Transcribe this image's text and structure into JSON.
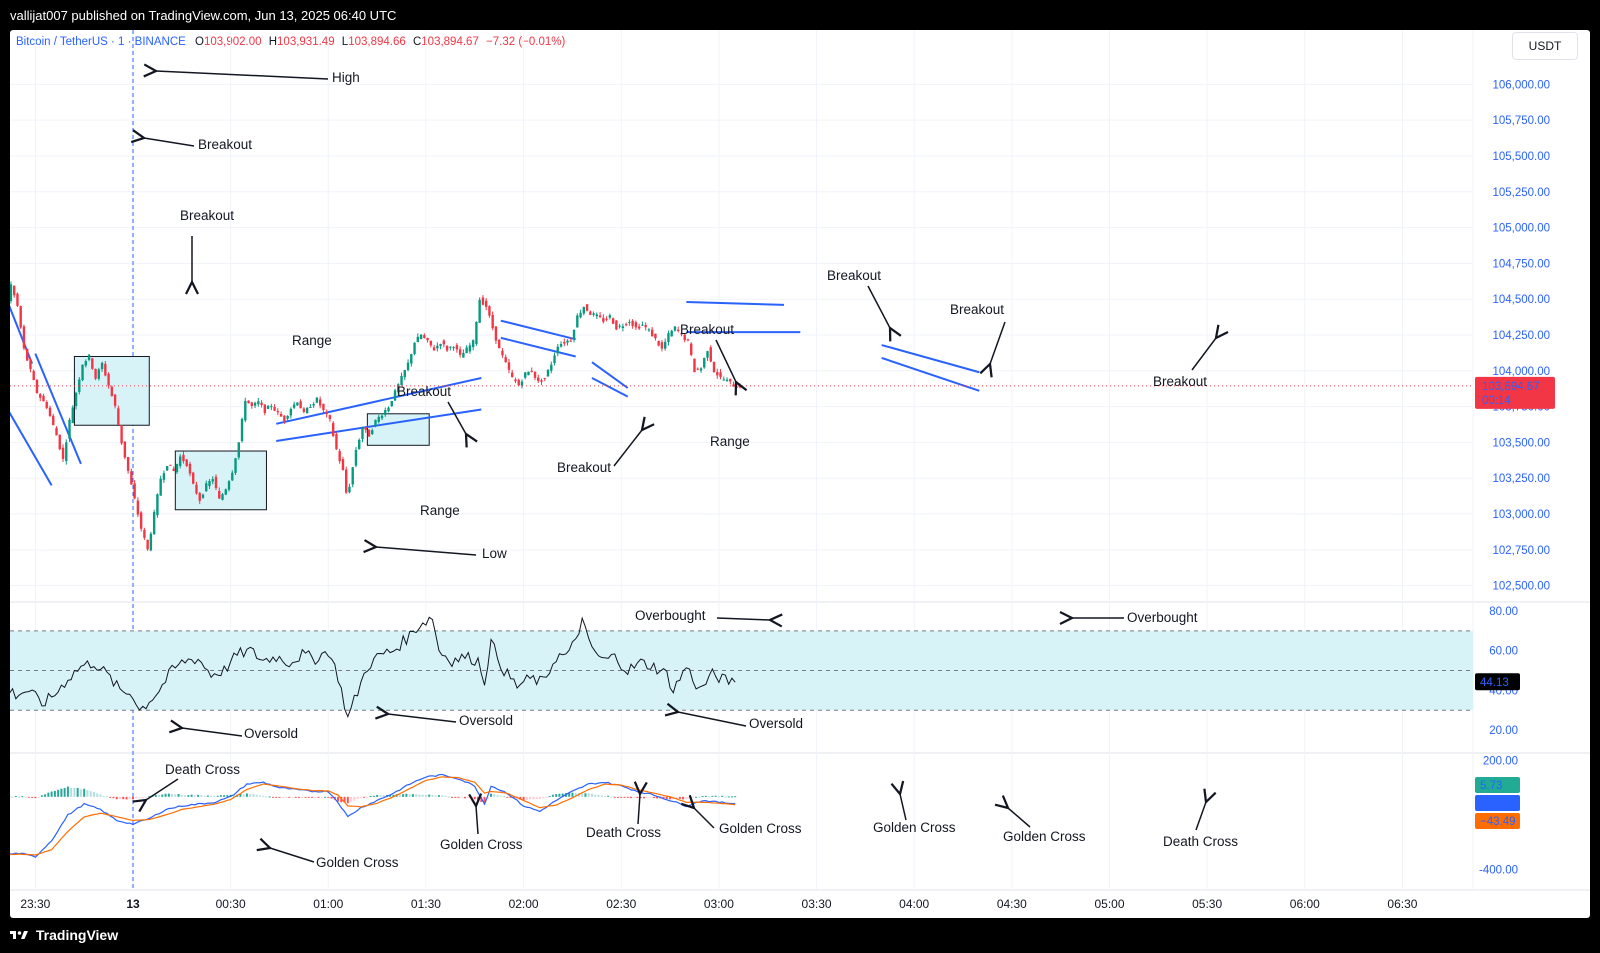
{
  "header": {
    "published": "vallijat007 published on TradingView.com, Jun 13, 2025 06:40 UTC"
  },
  "legend": {
    "symbol": "Bitcoin / TetherUS · 1 · BINANCE",
    "o_label": "O",
    "o": "103,902.00",
    "h_label": "H",
    "h": "103,931.49",
    "l_label": "L",
    "l": "103,894.66",
    "c_label": "C",
    "c": "103,894.67",
    "change": "−7.32 (−0.01%)"
  },
  "currency": "USDT",
  "footer": {
    "brand": "TradingView"
  },
  "colors": {
    "up": "#089981",
    "down": "#f23645",
    "annotation_line": "#2962ff",
    "zone_fill": "#d7f3f8",
    "macd_line": "#2962ff",
    "signal_line": "#ff6d00"
  },
  "chart_data": [
    {
      "type": "candlestick",
      "title": "Bitcoin / TetherUS · 1 · BINANCE",
      "y_ticks": [
        "106,000.00",
        "105,750.00",
        "105,500.00",
        "105,250.00",
        "105,000.00",
        "104,750.00",
        "104,500.00",
        "104,250.00",
        "104,000.00",
        "103,750.00",
        "103,500.00",
        "103,250.00",
        "103,000.00",
        "102,750.00",
        "102,500.00"
      ],
      "ylim": [
        102400,
        106100
      ],
      "x_ticks": [
        "23:30",
        "13",
        "00:30",
        "01:00",
        "01:30",
        "02:00",
        "02:30",
        "03:00",
        "03:30",
        "04:00",
        "04:30",
        "05:00",
        "05:30",
        "06:00",
        "06:30"
      ],
      "last_price": "103,894.67",
      "countdown": "00:14",
      "price_path": [
        [
          -105,
          106050
        ],
        [
          -95,
          106010
        ],
        [
          -85,
          105990
        ],
        [
          -75,
          105970
        ],
        [
          -65,
          105930
        ],
        [
          -60,
          105900
        ],
        [
          -58,
          105700
        ],
        [
          -56,
          105400
        ],
        [
          -54,
          105100
        ],
        [
          -52,
          104900
        ],
        [
          -50,
          104800
        ],
        [
          -47,
          104650
        ],
        [
          -44,
          104550
        ],
        [
          -41,
          104400
        ],
        [
          -39,
          104350
        ],
        [
          -37,
          104600
        ],
        [
          -35,
          104450
        ],
        [
          -33,
          104150
        ],
        [
          -31,
          104000
        ],
        [
          -29,
          103850
        ],
        [
          -26,
          103750
        ],
        [
          -23,
          103550
        ],
        [
          -21,
          103380
        ],
        [
          -19,
          103650
        ],
        [
          -17,
          103850
        ],
        [
          -15,
          104050
        ],
        [
          -13,
          104100
        ],
        [
          -11,
          103950
        ],
        [
          -9,
          104050
        ],
        [
          -7,
          103900
        ],
        [
          -5,
          103750
        ],
        [
          -3,
          103500
        ],
        [
          -1,
          103300
        ],
        [
          1,
          103100
        ],
        [
          3,
          102900
        ],
        [
          5,
          102750
        ],
        [
          7,
          103000
        ],
        [
          9,
          103250
        ],
        [
          11,
          103350
        ],
        [
          13,
          103300
        ],
        [
          15,
          103400
        ],
        [
          17,
          103350
        ],
        [
          19,
          103200
        ],
        [
          21,
          103100
        ],
        [
          23,
          103200
        ],
        [
          25,
          103250
        ],
        [
          27,
          103100
        ],
        [
          29,
          103180
        ],
        [
          31,
          103300
        ],
        [
          33,
          103500
        ],
        [
          35,
          103800
        ],
        [
          37,
          103750
        ],
        [
          39,
          103780
        ],
        [
          41,
          103720
        ],
        [
          43,
          103760
        ],
        [
          45,
          103700
        ],
        [
          47,
          103660
        ],
        [
          49,
          103740
        ],
        [
          51,
          103790
        ],
        [
          53,
          103700
        ],
        [
          55,
          103760
        ],
        [
          57,
          103800
        ],
        [
          59,
          103720
        ],
        [
          61,
          103650
        ],
        [
          63,
          103450
        ],
        [
          65,
          103300
        ],
        [
          66,
          103150
        ],
        [
          67,
          103200
        ],
        [
          69,
          103450
        ],
        [
          71,
          103600
        ],
        [
          73,
          103550
        ],
        [
          75,
          103650
        ],
        [
          77,
          103700
        ],
        [
          79,
          103750
        ],
        [
          81,
          103850
        ],
        [
          83,
          103950
        ],
        [
          85,
          104050
        ],
        [
          87,
          104200
        ],
        [
          89,
          104250
        ],
        [
          91,
          104200
        ],
        [
          93,
          104150
        ],
        [
          95,
          104200
        ],
        [
          97,
          104150
        ],
        [
          99,
          104180
        ],
        [
          101,
          104100
        ],
        [
          103,
          104150
        ],
        [
          105,
          104200
        ],
        [
          107,
          104500
        ],
        [
          109,
          104450
        ],
        [
          111,
          104300
        ],
        [
          113,
          104150
        ],
        [
          115,
          104050
        ],
        [
          117,
          103950
        ],
        [
          119,
          103900
        ],
        [
          121,
          103980
        ],
        [
          123,
          104000
        ],
        [
          125,
          103920
        ],
        [
          127,
          103950
        ],
        [
          129,
          104050
        ],
        [
          131,
          104180
        ],
        [
          133,
          104200
        ],
        [
          135,
          104220
        ],
        [
          137,
          104380
        ],
        [
          139,
          104450
        ],
        [
          141,
          104400
        ],
        [
          143,
          104380
        ],
        [
          145,
          104350
        ],
        [
          147,
          104380
        ],
        [
          149,
          104300
        ],
        [
          151,
          104320
        ],
        [
          153,
          104350
        ],
        [
          155,
          104300
        ],
        [
          157,
          104320
        ],
        [
          159,
          104280
        ],
        [
          161,
          104220
        ],
        [
          163,
          104150
        ],
        [
          165,
          104250
        ],
        [
          167,
          104300
        ],
        [
          169,
          104250
        ],
        [
          171,
          104200
        ],
        [
          173,
          104000
        ],
        [
          175,
          104020
        ],
        [
          177,
          104150
        ],
        [
          179,
          104000
        ],
        [
          181,
          103950
        ],
        [
          183,
          103930
        ],
        [
          185,
          103900
        ],
        [
          187,
          103894
        ]
      ],
      "annotations": [
        "High",
        "Breakout",
        "Breakout",
        "Range",
        "Breakout",
        "Range",
        "Low",
        "Breakout",
        "Breakout",
        "Range",
        "Breakout",
        "Breakout",
        "Breakout"
      ]
    },
    {
      "type": "line",
      "name": "RSI",
      "y_ticks": [
        "80.00",
        "60.00",
        "40.00",
        "20.00"
      ],
      "ylim": [
        10,
        83
      ],
      "bands": [
        30,
        50,
        70
      ],
      "last_value": "44.13",
      "values_path": [
        [
          -105,
          57
        ],
        [
          -95,
          52
        ],
        [
          -85,
          55
        ],
        [
          -75,
          50
        ],
        [
          -65,
          48
        ],
        [
          -60,
          32
        ],
        [
          -56,
          16
        ],
        [
          -52,
          25
        ],
        [
          -48,
          23
        ],
        [
          -44,
          24
        ],
        [
          -40,
          42
        ],
        [
          -36,
          38
        ],
        [
          -32,
          40
        ],
        [
          -28,
          33
        ],
        [
          -24,
          38
        ],
        [
          -20,
          46
        ],
        [
          -16,
          52
        ],
        [
          -12,
          54
        ],
        [
          -8,
          48
        ],
        [
          -4,
          40
        ],
        [
          0,
          38
        ],
        [
          2,
          30
        ],
        [
          4,
          33
        ],
        [
          8,
          40
        ],
        [
          12,
          50
        ],
        [
          16,
          55
        ],
        [
          20,
          56
        ],
        [
          24,
          48
        ],
        [
          28,
          50
        ],
        [
          32,
          58
        ],
        [
          36,
          60
        ],
        [
          40,
          55
        ],
        [
          44,
          57
        ],
        [
          48,
          54
        ],
        [
          52,
          58
        ],
        [
          56,
          56
        ],
        [
          60,
          60
        ],
        [
          63,
          47
        ],
        [
          66,
          26
        ],
        [
          68,
          35
        ],
        [
          72,
          52
        ],
        [
          76,
          58
        ],
        [
          80,
          60
        ],
        [
          84,
          66
        ],
        [
          88,
          73
        ],
        [
          92,
          77
        ],
        [
          94,
          60
        ],
        [
          98,
          55
        ],
        [
          102,
          57
        ],
        [
          106,
          55
        ],
        [
          108,
          45
        ],
        [
          110,
          64
        ],
        [
          114,
          50
        ],
        [
          118,
          42
        ],
        [
          122,
          46
        ],
        [
          126,
          44
        ],
        [
          130,
          57
        ],
        [
          134,
          58
        ],
        [
          138,
          75
        ],
        [
          140,
          64
        ],
        [
          144,
          55
        ],
        [
          148,
          57
        ],
        [
          152,
          50
        ],
        [
          156,
          54
        ],
        [
          160,
          52
        ],
        [
          164,
          48
        ],
        [
          166,
          40
        ],
        [
          170,
          52
        ],
        [
          174,
          40
        ],
        [
          178,
          48
        ],
        [
          182,
          45
        ],
        [
          185,
          44.13
        ]
      ],
      "annotations": [
        "Overbought",
        "Overbought",
        "Oversold",
        "Oversold",
        "Oversold"
      ]
    },
    {
      "type": "line",
      "name": "MACD",
      "y_ticks": [
        "200.00",
        "-400.00"
      ],
      "ylim": [
        -430,
        230
      ],
      "last_values": [
        "5.73",
        "−37.76",
        "−43.49"
      ],
      "macd_path": [
        [
          -105,
          -5
        ],
        [
          -90,
          -20
        ],
        [
          -75,
          -25
        ],
        [
          -65,
          -40
        ],
        [
          -60,
          -60
        ],
        [
          -55,
          -280
        ],
        [
          -50,
          -350
        ],
        [
          -45,
          -370
        ],
        [
          -40,
          -320
        ],
        [
          -35,
          -310
        ],
        [
          -30,
          -330
        ],
        [
          -25,
          -240
        ],
        [
          -20,
          -100
        ],
        [
          -15,
          -40
        ],
        [
          -10,
          -70
        ],
        [
          -5,
          -130
        ],
        [
          0,
          -150
        ],
        [
          5,
          -120
        ],
        [
          10,
          -70
        ],
        [
          15,
          -50
        ],
        [
          20,
          -40
        ],
        [
          25,
          -30
        ],
        [
          30,
          0
        ],
        [
          35,
          70
        ],
        [
          40,
          80
        ],
        [
          45,
          50
        ],
        [
          50,
          40
        ],
        [
          55,
          30
        ],
        [
          60,
          30
        ],
        [
          63,
          -30
        ],
        [
          66,
          -110
        ],
        [
          70,
          -60
        ],
        [
          75,
          -20
        ],
        [
          80,
          20
        ],
        [
          85,
          70
        ],
        [
          90,
          110
        ],
        [
          95,
          120
        ],
        [
          100,
          100
        ],
        [
          105,
          60
        ],
        [
          108,
          -40
        ],
        [
          110,
          60
        ],
        [
          115,
          20
        ],
        [
          120,
          -50
        ],
        [
          125,
          -80
        ],
        [
          130,
          -20
        ],
        [
          135,
          30
        ],
        [
          140,
          70
        ],
        [
          145,
          80
        ],
        [
          150,
          60
        ],
        [
          155,
          30
        ],
        [
          160,
          10
        ],
        [
          165,
          -20
        ],
        [
          170,
          -50
        ],
        [
          175,
          -20
        ],
        [
          180,
          -30
        ],
        [
          185,
          -37.76
        ]
      ],
      "signal_path": [
        [
          -105,
          -10
        ],
        [
          -90,
          -15
        ],
        [
          -75,
          -22
        ],
        [
          -65,
          -30
        ],
        [
          -60,
          -40
        ],
        [
          -55,
          -150
        ],
        [
          -50,
          -250
        ],
        [
          -45,
          -310
        ],
        [
          -40,
          -320
        ],
        [
          -35,
          -315
        ],
        [
          -30,
          -320
        ],
        [
          -25,
          -290
        ],
        [
          -20,
          -190
        ],
        [
          -15,
          -110
        ],
        [
          -10,
          -90
        ],
        [
          -5,
          -110
        ],
        [
          0,
          -130
        ],
        [
          5,
          -125
        ],
        [
          10,
          -100
        ],
        [
          15,
          -70
        ],
        [
          20,
          -55
        ],
        [
          25,
          -40
        ],
        [
          30,
          -15
        ],
        [
          35,
          40
        ],
        [
          40,
          70
        ],
        [
          45,
          60
        ],
        [
          50,
          45
        ],
        [
          55,
          35
        ],
        [
          60,
          32
        ],
        [
          63,
          10
        ],
        [
          66,
          -50
        ],
        [
          70,
          -55
        ],
        [
          75,
          -35
        ],
        [
          80,
          0
        ],
        [
          85,
          45
        ],
        [
          90,
          90
        ],
        [
          95,
          110
        ],
        [
          100,
          105
        ],
        [
          105,
          80
        ],
        [
          108,
          20
        ],
        [
          110,
          30
        ],
        [
          115,
          20
        ],
        [
          120,
          -20
        ],
        [
          125,
          -60
        ],
        [
          130,
          -45
        ],
        [
          135,
          -5
        ],
        [
          140,
          40
        ],
        [
          145,
          70
        ],
        [
          150,
          65
        ],
        [
          155,
          40
        ],
        [
          160,
          20
        ],
        [
          165,
          0
        ],
        [
          170,
          -30
        ],
        [
          175,
          -30
        ],
        [
          180,
          -35
        ],
        [
          185,
          -43.49
        ]
      ],
      "histogram_value": "5.73",
      "annotations": [
        "Death Cross",
        "Golden Cross",
        "Golden Cross",
        "Death Cross",
        "Golden Cross",
        "Golden Cross",
        "Golden Cross",
        "Death Cross"
      ]
    }
  ]
}
